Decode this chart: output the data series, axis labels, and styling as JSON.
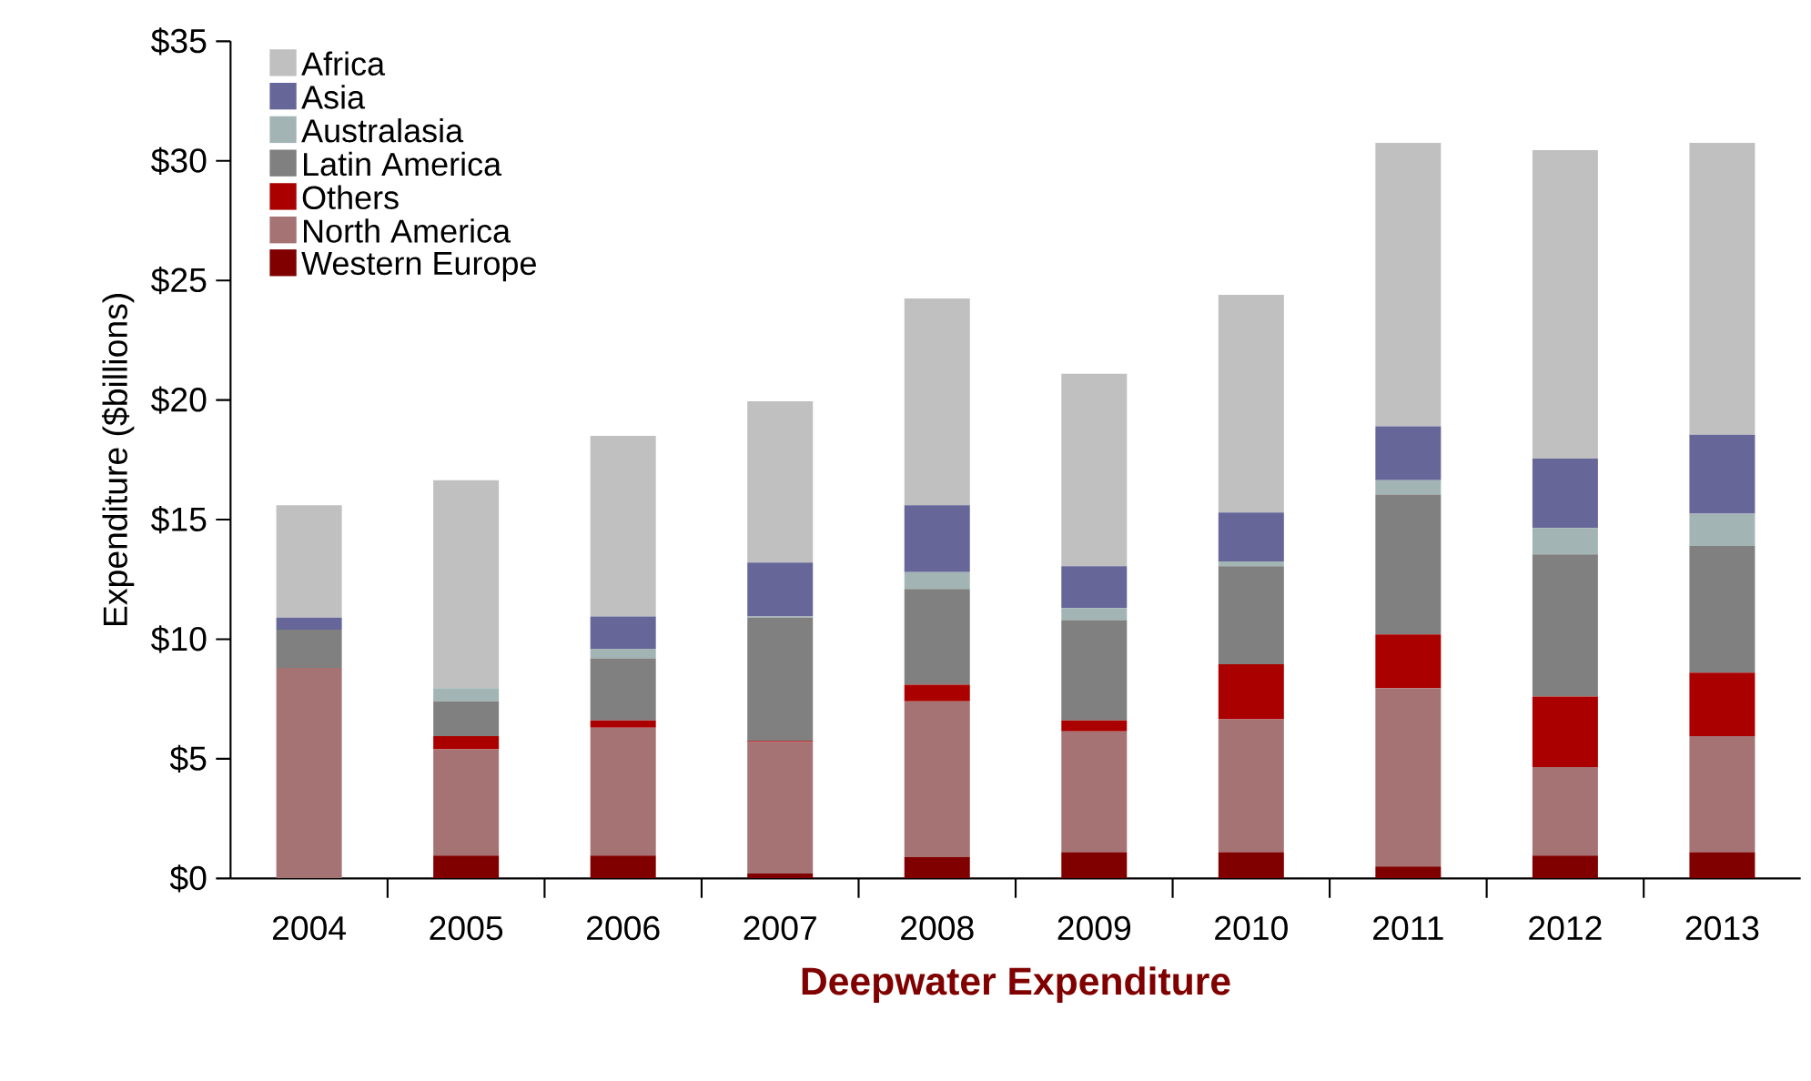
{
  "chart_data": {
    "type": "bar",
    "stacked": true,
    "xlabel": "Deepwater Expenditure",
    "ylabel": "Expenditure ($billions)",
    "categories": [
      "2004",
      "2005",
      "2006",
      "2007",
      "2008",
      "2009",
      "2010",
      "2011",
      "2012",
      "2013"
    ],
    "series": [
      {
        "name": "Western Europe",
        "color": "#800000",
        "values": [
          0,
          0.95,
          0.95,
          0.2,
          0.9,
          1.1,
          1.1,
          0.5,
          0.95,
          1.1
        ]
      },
      {
        "name": "North America",
        "color": "#a57373",
        "values": [
          8.8,
          4.45,
          5.35,
          5.5,
          6.5,
          5.05,
          5.55,
          7.45,
          3.7,
          4.85
        ]
      },
      {
        "name": "Others",
        "color": "#aa0000",
        "values": [
          0,
          0.55,
          0.3,
          0.05,
          0.7,
          0.45,
          2.3,
          2.25,
          2.95,
          2.65
        ]
      },
      {
        "name": "Latin America",
        "color": "#808080",
        "values": [
          1.6,
          1.45,
          2.6,
          5.15,
          4.0,
          4.2,
          4.1,
          5.85,
          5.95,
          5.3
        ]
      },
      {
        "name": "Australasia",
        "color": "#a3b4b4",
        "values": [
          0,
          0.55,
          0.4,
          0.05,
          0.7,
          0.5,
          0.2,
          0.6,
          1.1,
          1.35
        ]
      },
      {
        "name": "Asia",
        "color": "#666699",
        "values": [
          0.5,
          0,
          1.35,
          2.25,
          2.8,
          1.75,
          2.05,
          2.25,
          2.9,
          3.3
        ]
      },
      {
        "name": "Africa",
        "color": "#c0c0c0",
        "values": [
          4.7,
          8.7,
          7.55,
          6.75,
          8.65,
          8.05,
          9.1,
          11.85,
          12.9,
          12.2
        ]
      }
    ],
    "ylim": [
      0,
      35
    ],
    "yticks": [
      {
        "value": 0,
        "label": "$0"
      },
      {
        "value": 5,
        "label": "$5"
      },
      {
        "value": 10,
        "label": "$10"
      },
      {
        "value": 15,
        "label": "$15"
      },
      {
        "value": 20,
        "label": "$20"
      },
      {
        "value": 25,
        "label": "$25"
      },
      {
        "value": 30,
        "label": "$30"
      },
      {
        "value": 35,
        "label": "$35"
      }
    ],
    "legend": "top left",
    "grid": false
  }
}
